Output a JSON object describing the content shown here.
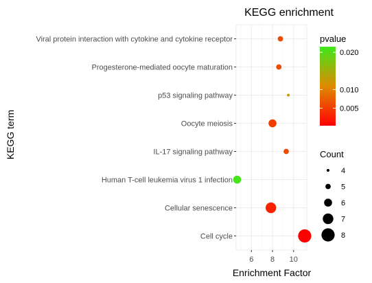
{
  "chart_data": {
    "type": "scatter",
    "title": "KEGG enrichment",
    "xlabel": "Enrichment Factor",
    "ylabel": "KEGG term",
    "xlim": [
      4.55,
      11.25
    ],
    "x_ticks": [
      "6",
      "8",
      "10"
    ],
    "x_tick_values": [
      6,
      8,
      10
    ],
    "grid": true,
    "categories": [
      "Viral protein interaction with cytokine and cytokine receptor",
      "Progesterone-mediated oocyte maturation",
      "p53 signaling pathway",
      "Oocyte meiosis",
      "IL-17 signaling pathway",
      "Human T-cell leukemia virus 1 infection",
      "Cellular senescence",
      "Cell cycle"
    ],
    "points": [
      {
        "term": "Viral protein interaction with cytokine and cytokine receptor",
        "x": 8.75,
        "count": 5,
        "pvalue": 0.006
      },
      {
        "term": "Progesterone-mediated oocyte maturation",
        "x": 8.6,
        "count": 5,
        "pvalue": 0.006
      },
      {
        "term": "p53 signaling pathway",
        "x": 9.5,
        "count": 4,
        "pvalue": 0.012
      },
      {
        "term": "Oocyte meiosis",
        "x": 8.0,
        "count": 6,
        "pvalue": 0.005
      },
      {
        "term": "IL-17 signaling pathway",
        "x": 9.3,
        "count": 5,
        "pvalue": 0.006
      },
      {
        "term": "Human T-cell leukemia virus 1 infection",
        "x": 4.65,
        "count": 6,
        "pvalue": 0.021
      },
      {
        "term": "Cellular senescence",
        "x": 7.85,
        "count": 7,
        "pvalue": 0.003
      },
      {
        "term": "Cell cycle",
        "x": 11.05,
        "count": 8,
        "pvalue": 0.0003
      }
    ],
    "color_legend": {
      "title": "pvalue",
      "range": [
        0.0003,
        0.0215
      ],
      "ticks": [
        "0.020",
        "0.010",
        "0.005"
      ],
      "tick_values": [
        0.02,
        0.01,
        0.005
      ],
      "low_color": "#ff0000",
      "mid_color": "#e08a00",
      "high_color": "#3ee81c"
    },
    "size_legend": {
      "title": "Count",
      "values": [
        4,
        5,
        6,
        7,
        8
      ],
      "labels": [
        "4",
        "5",
        "6",
        "7",
        "8"
      ]
    }
  }
}
